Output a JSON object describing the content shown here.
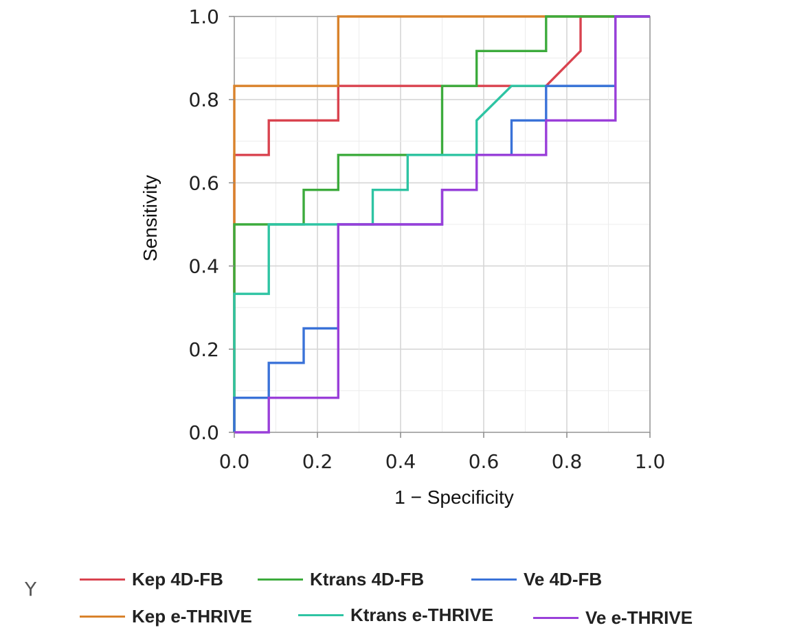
{
  "chart_data": {
    "type": "line",
    "title": "",
    "xlabel": "1 − Specificity",
    "ylabel": "Sensitivity",
    "xlim": [
      0,
      1
    ],
    "ylim": [
      0,
      1
    ],
    "xticks": [
      "0.0",
      "0.2",
      "0.4",
      "0.6",
      "0.8",
      "1.0"
    ],
    "yticks": [
      "0.0",
      "0.2",
      "0.4",
      "0.6",
      "0.8",
      "1.0"
    ],
    "grid": true,
    "legend_title": "Y",
    "legend_position": "bottom",
    "series": [
      {
        "name": "Kep 4D-FB",
        "color": "#d9434f",
        "x": [
          0,
          0,
          0.083,
          0.083,
          0.25,
          0.25,
          0.75,
          0.833,
          0.833,
          1
        ],
        "y": [
          0,
          0.667,
          0.667,
          0.75,
          0.75,
          0.833,
          0.833,
          0.917,
          1,
          1
        ]
      },
      {
        "name": "Kep e-THRIVE",
        "color": "#d9822b",
        "x": [
          0,
          0,
          0.25,
          0.25,
          1
        ],
        "y": [
          0,
          0.833,
          0.833,
          1,
          1
        ]
      },
      {
        "name": "Ktrans 4D-FB",
        "color": "#3cab3c",
        "x": [
          0,
          0,
          0.167,
          0.167,
          0.25,
          0.25,
          0.5,
          0.5,
          0.583,
          0.583,
          0.75,
          0.75,
          1
        ],
        "y": [
          0,
          0.5,
          0.5,
          0.583,
          0.583,
          0.667,
          0.667,
          0.833,
          0.833,
          0.917,
          0.917,
          1,
          1
        ]
      },
      {
        "name": "Ktrans e-THRIVE",
        "color": "#2ec4a3",
        "x": [
          0,
          0,
          0.083,
          0.083,
          0.333,
          0.333,
          0.417,
          0.417,
          0.583,
          0.583,
          0.667,
          0.917,
          0.917,
          1
        ],
        "y": [
          0,
          0.333,
          0.333,
          0.5,
          0.5,
          0.583,
          0.583,
          0.667,
          0.667,
          0.75,
          0.833,
          0.833,
          1,
          1
        ]
      },
      {
        "name": "Ve 4D-FB",
        "color": "#3a72d8",
        "x": [
          0,
          0,
          0.083,
          0.083,
          0.167,
          0.167,
          0.25,
          0.25,
          0.5,
          0.5,
          0.583,
          0.583,
          0.667,
          0.667,
          0.75,
          0.75,
          0.917,
          0.917,
          1
        ],
        "y": [
          0,
          0.083,
          0.083,
          0.167,
          0.167,
          0.25,
          0.25,
          0.5,
          0.5,
          0.583,
          0.583,
          0.667,
          0.667,
          0.75,
          0.75,
          0.833,
          0.833,
          1,
          1
        ]
      },
      {
        "name": "Ve e-THRIVE",
        "color": "#9a3fd9",
        "x": [
          0,
          0.083,
          0.083,
          0.25,
          0.25,
          0.5,
          0.5,
          0.583,
          0.583,
          0.75,
          0.75,
          0.917,
          0.917,
          1
        ],
        "y": [
          0,
          0,
          0.083,
          0.083,
          0.5,
          0.5,
          0.583,
          0.583,
          0.667,
          0.667,
          0.75,
          0.75,
          1,
          1
        ]
      }
    ]
  }
}
